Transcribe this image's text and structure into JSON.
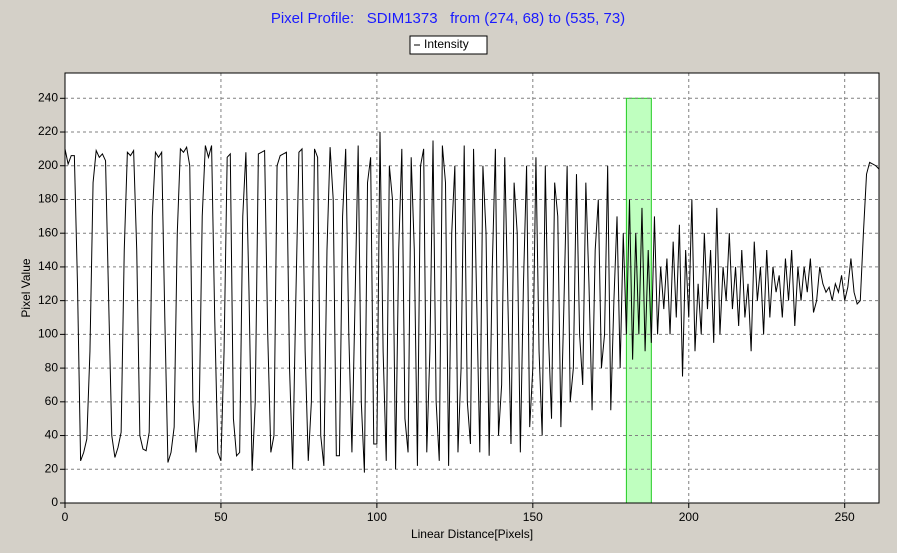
{
  "chart_data": {
    "type": "line",
    "title": "Pixel Profile:   SDIM1373   from (274, 68) to (535, 73)",
    "x_label": "Linear Distance[Pixels]",
    "y_label": "Pixel Value",
    "x": [
      0,
      1,
      2,
      3,
      4,
      5,
      6,
      7,
      8,
      9,
      10,
      11,
      12,
      13,
      14,
      15,
      16,
      17,
      18,
      19,
      20,
      21,
      22,
      23,
      24,
      25,
      26,
      27,
      28,
      29,
      30,
      31,
      32,
      33,
      34,
      35,
      36,
      37,
      38,
      39,
      40,
      41,
      42,
      43,
      44,
      45,
      46,
      47,
      48,
      49,
      50,
      51,
      52,
      53,
      54,
      55,
      56,
      57,
      58,
      59,
      60,
      61,
      62,
      63,
      64,
      65,
      66,
      67,
      68,
      69,
      70,
      71,
      72,
      73,
      74,
      75,
      76,
      77,
      78,
      79,
      80,
      81,
      82,
      83,
      84,
      85,
      86,
      87,
      88,
      89,
      90,
      91,
      92,
      93,
      94,
      95,
      96,
      97,
      98,
      99,
      100,
      101,
      102,
      103,
      104,
      105,
      106,
      107,
      108,
      109,
      110,
      111,
      112,
      113,
      114,
      115,
      116,
      117,
      118,
      119,
      120,
      121,
      122,
      123,
      124,
      125,
      126,
      127,
      128,
      129,
      130,
      131,
      132,
      133,
      134,
      135,
      136,
      137,
      138,
      139,
      140,
      141,
      142,
      143,
      144,
      145,
      146,
      147,
      148,
      149,
      150,
      151,
      152,
      153,
      154,
      155,
      156,
      157,
      158,
      159,
      160,
      161,
      162,
      163,
      164,
      165,
      166,
      167,
      168,
      169,
      170,
      171,
      172,
      173,
      174,
      175,
      176,
      177,
      178,
      179,
      180,
      181,
      182,
      183,
      184,
      185,
      186,
      187,
      188,
      189,
      190,
      191,
      192,
      193,
      194,
      195,
      196,
      197,
      198,
      199,
      200,
      201,
      202,
      203,
      204,
      205,
      206,
      207,
      208,
      209,
      210,
      211,
      212,
      213,
      214,
      215,
      216,
      217,
      218,
      219,
      220,
      221,
      222,
      223,
      224,
      225,
      226,
      227,
      228,
      229,
      230,
      231,
      232,
      233,
      234,
      235,
      236,
      237,
      238,
      239,
      240,
      241,
      242,
      243,
      244,
      245,
      246,
      247,
      248,
      249,
      250,
      251,
      252,
      253,
      254,
      255,
      256,
      257,
      258,
      259,
      260,
      261
    ],
    "series": [
      {
        "name": "Intensity",
        "color": "#000000",
        "values": [
          210,
          201,
          206,
          206,
          130,
          25,
          30,
          38,
          90,
          190,
          209,
          205,
          207,
          203,
          120,
          40,
          27,
          33,
          42,
          150,
          208,
          206,
          209,
          150,
          40,
          32,
          31,
          42,
          170,
          208,
          205,
          208,
          110,
          24,
          30,
          45,
          160,
          210,
          208,
          211,
          200,
          60,
          30,
          50,
          170,
          212,
          205,
          212,
          110,
          30,
          25,
          90,
          205,
          207,
          50,
          28,
          30,
          170,
          208,
          125,
          19,
          60,
          207,
          208,
          209,
          100,
          30,
          40,
          200,
          206,
          207,
          208,
          80,
          20,
          120,
          208,
          210,
          90,
          25,
          60,
          210,
          205,
          40,
          22,
          150,
          211,
          180,
          28,
          28,
          170,
          210,
          100,
          30,
          120,
          212,
          60,
          18,
          190,
          205,
          35,
          35,
          220,
          90,
          25,
          200,
          180,
          20,
          150,
          210,
          50,
          30,
          205,
          150,
          22,
          200,
          210,
          30,
          90,
          215,
          60,
          25,
          212,
          190,
          22,
          160,
          200,
          30,
          80,
          212,
          60,
          35,
          210,
          120,
          30,
          200,
          160,
          28,
          140,
          210,
          40,
          70,
          205,
          120,
          35,
          190,
          160,
          30,
          130,
          200,
          45,
          80,
          205,
          90,
          40,
          200,
          100,
          50,
          190,
          170,
          45,
          120,
          200,
          60,
          80,
          195,
          100,
          70,
          190,
          130,
          55,
          150,
          180,
          80,
          100,
          200,
          55,
          120,
          170,
          80,
          160,
          100,
          180,
          85,
          160,
          100,
          175,
          90,
          150,
          95,
          170,
          100,
          140,
          115,
          145,
          100,
          155,
          110,
          165,
          75,
          150,
          110,
          180,
          90,
          130,
          100,
          160,
          115,
          150,
          95,
          175,
          100,
          140,
          120,
          160,
          115,
          140,
          105,
          150,
          110,
          130,
          90,
          155,
          120,
          140,
          100,
          150,
          110,
          140,
          125,
          135,
          110,
          145,
          120,
          150,
          105,
          140,
          120,
          140,
          125,
          145,
          113,
          120,
          140,
          130,
          125,
          128,
          120,
          130,
          125,
          135,
          120,
          128,
          145,
          125,
          118,
          120,
          160,
          195,
          202,
          201,
          200,
          198
        ]
      }
    ],
    "highlight": {
      "x": [
        180,
        188
      ],
      "y": [
        0,
        240
      ],
      "color": "#7fff7f"
    },
    "xlim": [
      0,
      261
    ],
    "ylim": [
      0,
      255
    ],
    "xticks": [
      0,
      50,
      100,
      150,
      200,
      250
    ],
    "yticks": [
      0,
      20,
      40,
      60,
      80,
      100,
      120,
      140,
      160,
      180,
      200,
      220,
      240
    ],
    "grid": true
  }
}
